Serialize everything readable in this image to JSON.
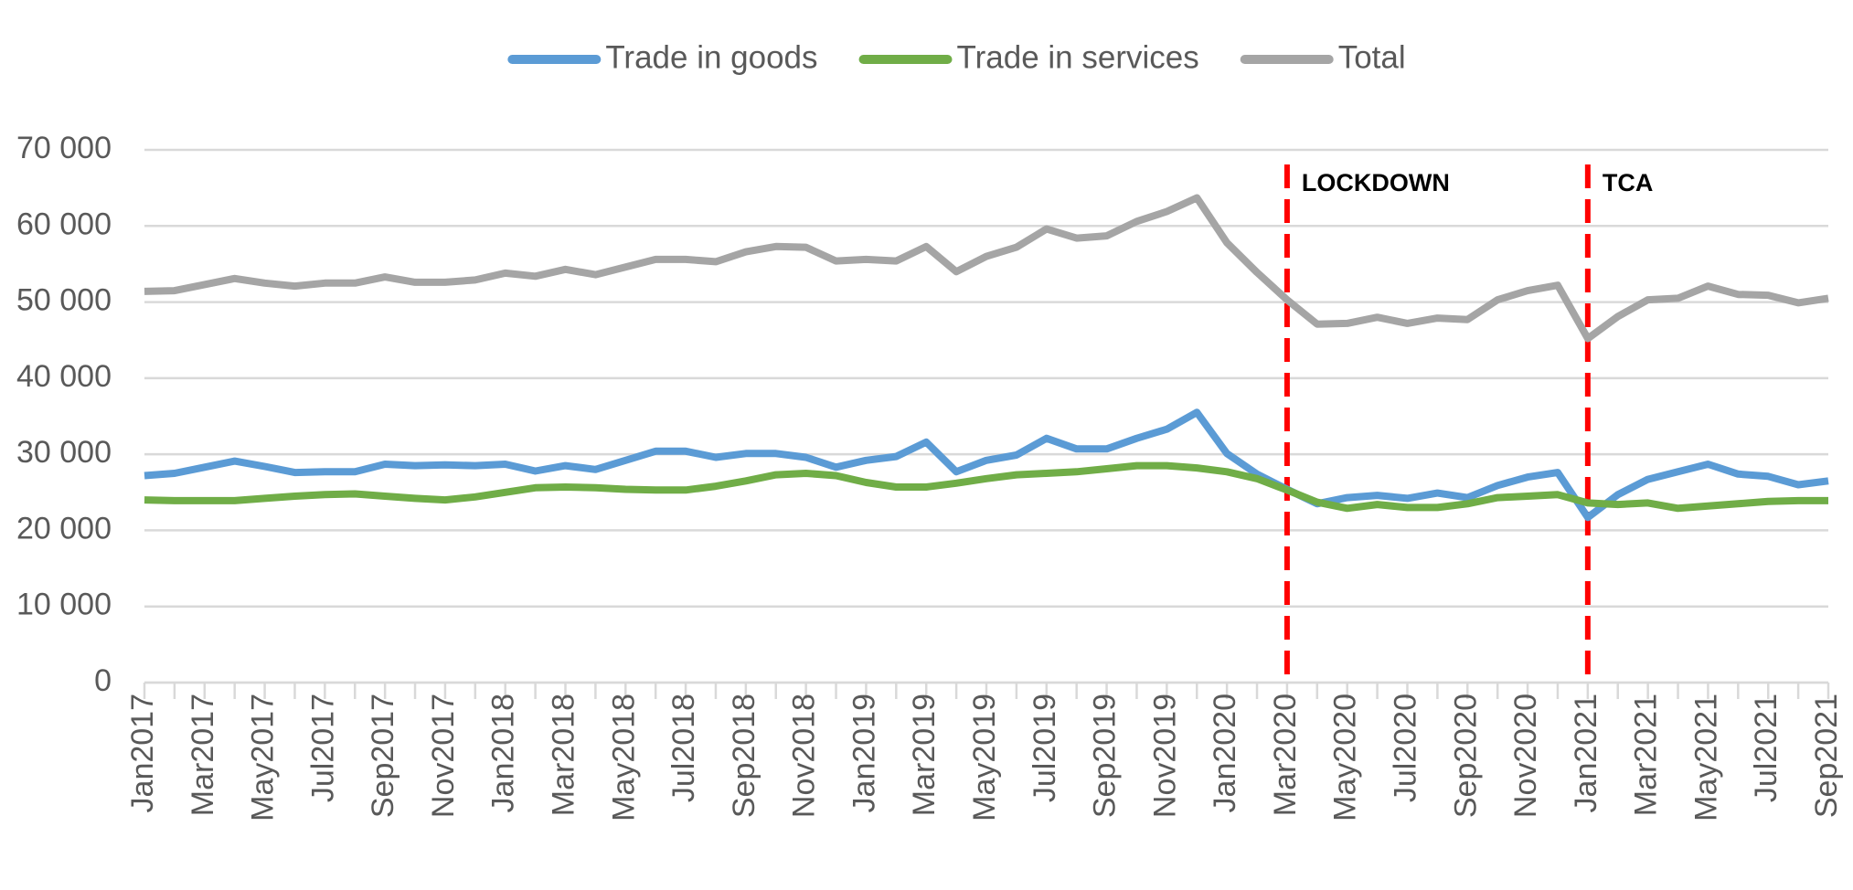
{
  "chart_data": {
    "type": "line",
    "categories": [
      "Jan2017",
      null,
      "Mar2017",
      null,
      "May2017",
      null,
      "Jul2017",
      null,
      "Sep2017",
      null,
      "Nov2017",
      null,
      "Jan2018",
      null,
      "Mar2018",
      null,
      "May2018",
      null,
      "Jul2018",
      null,
      "Sep2018",
      null,
      "Nov2018",
      null,
      "Jan2019",
      null,
      "Mar2019",
      null,
      "May2019",
      null,
      "Jul2019",
      null,
      "Sep2019",
      null,
      "Nov2019",
      null,
      "Jan2020",
      null,
      "Mar2020",
      null,
      "May2020",
      null,
      "Jul2020",
      null,
      "Sep2020",
      null,
      "Nov2020",
      null,
      "Jan2021",
      null,
      "Mar2021",
      null,
      "May2021",
      null,
      "Jul2021",
      null,
      "Sep2021"
    ],
    "series": [
      {
        "name": "Trade in goods",
        "color": "#5b9bd5",
        "values": [
          27200,
          27500,
          28300,
          29100,
          28400,
          27600,
          27700,
          27700,
          28700,
          28500,
          28600,
          28500,
          28700,
          27800,
          28500,
          28000,
          29200,
          30400,
          30400,
          29600,
          30100,
          30100,
          29600,
          28300,
          29200,
          29700,
          31600,
          27700,
          29200,
          29900,
          32100,
          30700,
          30700,
          32100,
          33300,
          35500,
          30100,
          27400,
          25400,
          23500,
          24300,
          24600,
          24200,
          24900,
          24300,
          25900,
          27000,
          27600,
          21700,
          24700,
          26700,
          27700,
          28700,
          27400,
          27100,
          26000,
          26500
        ]
      },
      {
        "name": "Trade in services",
        "color": "#70ad47",
        "values": [
          24000,
          23900,
          23900,
          23900,
          24200,
          24500,
          24700,
          24800,
          24500,
          24200,
          24000,
          24400,
          25000,
          25600,
          25700,
          25600,
          25400,
          25300,
          25300,
          25800,
          26500,
          27300,
          27500,
          27200,
          26300,
          25700,
          25700,
          26200,
          26800,
          27300,
          27500,
          27700,
          28100,
          28500,
          28500,
          28200,
          27700,
          26800,
          25300,
          23700,
          22900,
          23400,
          23000,
          23000,
          23500,
          24300,
          24500,
          24700,
          23600,
          23400,
          23600,
          22900,
          23200,
          23500,
          23800,
          23900,
          23900
        ]
      },
      {
        "name": "Total",
        "color": "#a5a5a5",
        "values": [
          51400,
          51500,
          52300,
          53100,
          52500,
          52100,
          52500,
          52500,
          53300,
          52600,
          52600,
          52900,
          53800,
          53400,
          54300,
          53600,
          54600,
          55600,
          55600,
          55300,
          56600,
          57300,
          57200,
          55400,
          55600,
          55400,
          57300,
          54000,
          56000,
          57200,
          59600,
          58400,
          58700,
          60600,
          61900,
          63700,
          57800,
          53900,
          50300,
          47100,
          47200,
          48000,
          47200,
          47900,
          47700,
          50300,
          51500,
          52200,
          45200,
          48100,
          50300,
          50500,
          52100,
          51000,
          50900,
          49900,
          50500
        ]
      }
    ],
    "ylim": [
      0,
      70000
    ],
    "yticks": [
      0,
      {
        "value": 10000,
        "label": "10 000"
      },
      {
        "value": 20000,
        "label": "20 000"
      },
      {
        "value": 30000,
        "label": "30 000"
      },
      {
        "value": 40000,
        "label": "40 000"
      },
      {
        "value": 50000,
        "label": "50 000"
      },
      {
        "value": 60000,
        "label": "60 000"
      },
      {
        "value": 70000,
        "label": "70 000"
      }
    ],
    "grid": true,
    "legend": "top",
    "annotations": [
      {
        "label": "LOCKDOWN",
        "x": "Mar2020",
        "color": "#ff0000"
      },
      {
        "label": "TCA",
        "x": "Jan2021",
        "color": "#ff0000"
      }
    ]
  }
}
